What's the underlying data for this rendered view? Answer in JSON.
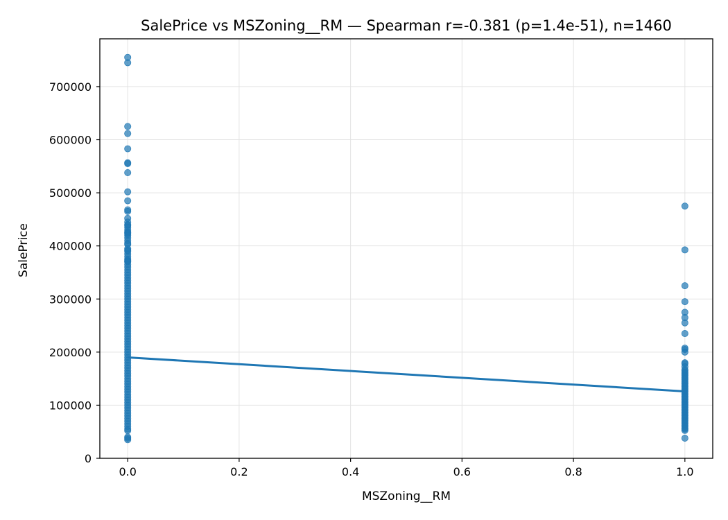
{
  "chart_data": {
    "type": "scatter",
    "title": "SalePrice vs MSZoning__RM — Spearman r=-0.381 (p=1.4e-51), n=1460",
    "xlabel": "MSZoning__RM",
    "ylabel": "SalePrice",
    "xlim": [
      -0.05,
      1.05
    ],
    "ylim": [
      0,
      790000
    ],
    "xticks": [
      0.0,
      0.2,
      0.4,
      0.6,
      0.8,
      1.0
    ],
    "xtick_labels": [
      "0.0",
      "0.2",
      "0.4",
      "0.6",
      "0.8",
      "1.0"
    ],
    "yticks": [
      0,
      100000,
      200000,
      300000,
      400000,
      500000,
      600000,
      700000
    ],
    "ytick_labels": [
      "0",
      "100000",
      "200000",
      "300000",
      "400000",
      "500000",
      "600000",
      "700000"
    ],
    "grid": true,
    "series": [
      {
        "type": "scatter",
        "color": "#1f77b4",
        "points": [
          [
            0,
            755000
          ],
          [
            0,
            745000
          ],
          [
            0,
            625000
          ],
          [
            0,
            611657
          ],
          [
            0,
            582933
          ],
          [
            0,
            556581
          ],
          [
            0,
            555000
          ],
          [
            0,
            538000
          ],
          [
            0,
            501837
          ],
          [
            0,
            485000
          ],
          [
            0,
            468000
          ],
          [
            0,
            465000
          ],
          [
            0,
            451950
          ],
          [
            0,
            445000
          ],
          [
            0,
            440000
          ],
          [
            0,
            438780
          ],
          [
            0,
            435000
          ],
          [
            0,
            430000
          ],
          [
            0,
            426000
          ],
          [
            0,
            424870
          ],
          [
            0,
            423000
          ],
          [
            0,
            420000
          ],
          [
            0,
            415298
          ],
          [
            0,
            410000
          ],
          [
            0,
            405000
          ],
          [
            0,
            402861
          ],
          [
            0,
            395000
          ],
          [
            0,
            392000
          ],
          [
            0,
            390000
          ],
          [
            0,
            385000
          ],
          [
            0,
            380000
          ],
          [
            0,
            375000
          ],
          [
            0,
            372402
          ],
          [
            0,
            370878
          ],
          [
            0,
            369900
          ],
          [
            0,
            365000
          ],
          [
            0,
            360000
          ],
          [
            0,
            355000
          ],
          [
            0,
            350000
          ],
          [
            0,
            345000
          ],
          [
            0,
            340000
          ],
          [
            0,
            335000
          ],
          [
            0,
            330000
          ],
          [
            0,
            325000
          ],
          [
            0,
            320000
          ],
          [
            0,
            315000
          ],
          [
            0,
            310000
          ],
          [
            0,
            305000
          ],
          [
            0,
            300000
          ],
          [
            0,
            295000
          ],
          [
            0,
            290000
          ],
          [
            0,
            285000
          ],
          [
            0,
            280000
          ],
          [
            0,
            275000
          ],
          [
            0,
            270000
          ],
          [
            0,
            265000
          ],
          [
            0,
            260000
          ],
          [
            0,
            255000
          ],
          [
            0,
            250000
          ],
          [
            0,
            245000
          ],
          [
            0,
            240000
          ],
          [
            0,
            235000
          ],
          [
            0,
            230000
          ],
          [
            0,
            225000
          ],
          [
            0,
            220000
          ],
          [
            0,
            215000
          ],
          [
            0,
            210000
          ],
          [
            0,
            205000
          ],
          [
            0,
            200000
          ],
          [
            0,
            195000
          ],
          [
            0,
            190000
          ],
          [
            0,
            185000
          ],
          [
            0,
            180000
          ],
          [
            0,
            175000
          ],
          [
            0,
            170000
          ],
          [
            0,
            165000
          ],
          [
            0,
            160000
          ],
          [
            0,
            155000
          ],
          [
            0,
            150000
          ],
          [
            0,
            145000
          ],
          [
            0,
            140000
          ],
          [
            0,
            135000
          ],
          [
            0,
            130000
          ],
          [
            0,
            125000
          ],
          [
            0,
            120000
          ],
          [
            0,
            115000
          ],
          [
            0,
            110000
          ],
          [
            0,
            105000
          ],
          [
            0,
            100000
          ],
          [
            0,
            95000
          ],
          [
            0,
            90000
          ],
          [
            0,
            85000
          ],
          [
            0,
            80000
          ],
          [
            0,
            75000
          ],
          [
            0,
            70000
          ],
          [
            0,
            65000
          ],
          [
            0,
            60000
          ],
          [
            0,
            55000
          ],
          [
            0,
            52000
          ],
          [
            0,
            40000
          ],
          [
            0,
            37900
          ],
          [
            0,
            34900
          ],
          [
            1,
            475000
          ],
          [
            1,
            392500
          ],
          [
            1,
            325000
          ],
          [
            1,
            295000
          ],
          [
            1,
            275000
          ],
          [
            1,
            265000
          ],
          [
            1,
            255000
          ],
          [
            1,
            235000
          ],
          [
            1,
            207500
          ],
          [
            1,
            205000
          ],
          [
            1,
            200000
          ],
          [
            1,
            180000
          ],
          [
            1,
            178000
          ],
          [
            1,
            172500
          ],
          [
            1,
            167000
          ],
          [
            1,
            165000
          ],
          [
            1,
            162000
          ],
          [
            1,
            160000
          ],
          [
            1,
            157000
          ],
          [
            1,
            155000
          ],
          [
            1,
            152000
          ],
          [
            1,
            150000
          ],
          [
            1,
            148000
          ],
          [
            1,
            145000
          ],
          [
            1,
            142000
          ],
          [
            1,
            140000
          ],
          [
            1,
            137000
          ],
          [
            1,
            135000
          ],
          [
            1,
            132000
          ],
          [
            1,
            130000
          ],
          [
            1,
            127000
          ],
          [
            1,
            125000
          ],
          [
            1,
            122000
          ],
          [
            1,
            120000
          ],
          [
            1,
            117000
          ],
          [
            1,
            115000
          ],
          [
            1,
            112000
          ],
          [
            1,
            110000
          ],
          [
            1,
            107000
          ],
          [
            1,
            105000
          ],
          [
            1,
            102000
          ],
          [
            1,
            100000
          ],
          [
            1,
            97000
          ],
          [
            1,
            95000
          ],
          [
            1,
            92000
          ],
          [
            1,
            90000
          ],
          [
            1,
            87000
          ],
          [
            1,
            85000
          ],
          [
            1,
            82000
          ],
          [
            1,
            80000
          ],
          [
            1,
            77000
          ],
          [
            1,
            75000
          ],
          [
            1,
            72000
          ],
          [
            1,
            70000
          ],
          [
            1,
            67000
          ],
          [
            1,
            65000
          ],
          [
            1,
            62000
          ],
          [
            1,
            60000
          ],
          [
            1,
            57000
          ],
          [
            1,
            55000
          ],
          [
            1,
            52500
          ],
          [
            1,
            37900
          ]
        ]
      },
      {
        "type": "line",
        "color": "#1f77b4",
        "x": [
          0,
          1
        ],
        "y": [
          190000,
          126000
        ]
      }
    ]
  }
}
